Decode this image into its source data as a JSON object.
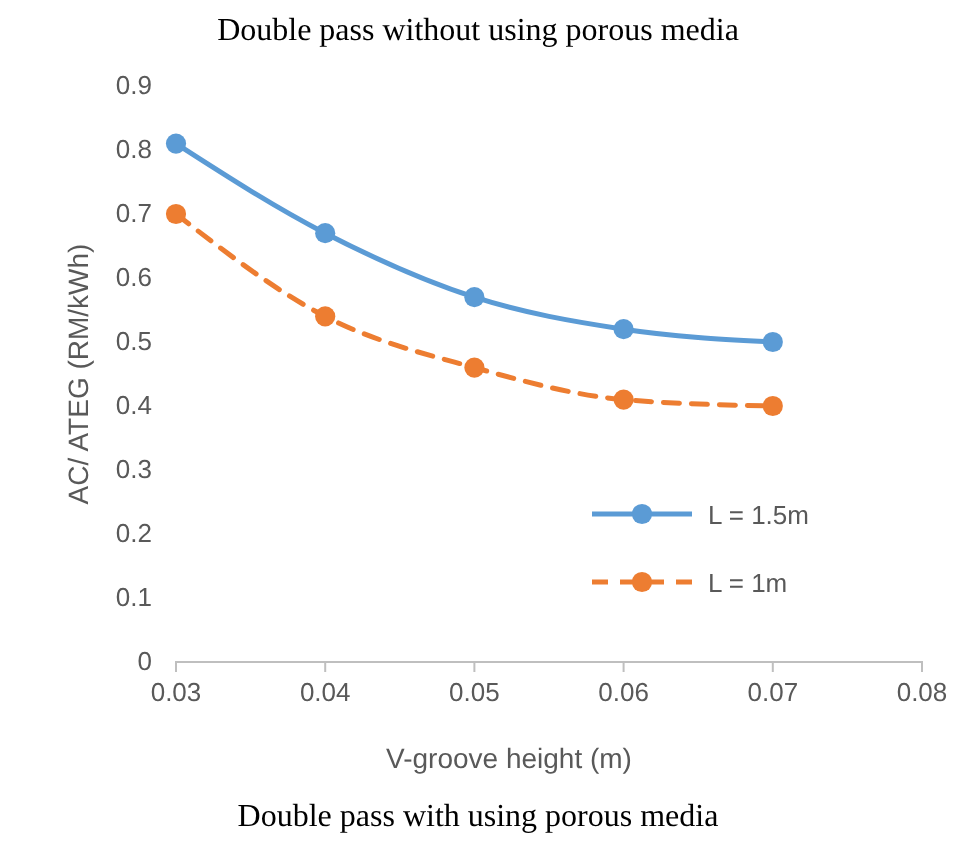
{
  "chart_data": {
    "type": "line",
    "title": "Double pass without using porous media",
    "xlabel": "V-groove height (m)",
    "ylabel": "AC/ ATEG (RM/kWh)",
    "annotations": [
      "Double pass with using porous media"
    ],
    "x": [
      0.03,
      0.04,
      0.05,
      0.06,
      0.07
    ],
    "series": [
      {
        "name": "L = 1.5m",
        "color": "#5b9bd5",
        "line_style": "solid",
        "values": [
          0.81,
          0.67,
          0.57,
          0.52,
          0.5
        ]
      },
      {
        "name": "L = 1m",
        "color": "#ed7d31",
        "line_style": "dashed",
        "values": [
          0.7,
          0.54,
          0.46,
          0.41,
          0.4
        ]
      }
    ],
    "xlim": [
      0.03,
      0.08
    ],
    "xticks": [
      {
        "value": 0.03,
        "label": "0.03"
      },
      {
        "value": 0.04,
        "label": "0.04"
      },
      {
        "value": 0.05,
        "label": "0.05"
      },
      {
        "value": 0.06,
        "label": "0.06"
      },
      {
        "value": 0.07,
        "label": "0.07"
      },
      {
        "value": 0.08,
        "label": "0.08"
      }
    ],
    "ylim": [
      0,
      0.9
    ],
    "yticks": [
      0,
      0.1,
      0.2,
      0.3,
      0.4,
      0.5,
      0.6,
      0.7,
      0.8,
      0.9
    ],
    "marker": "circle",
    "legend": "right",
    "grid": false
  }
}
